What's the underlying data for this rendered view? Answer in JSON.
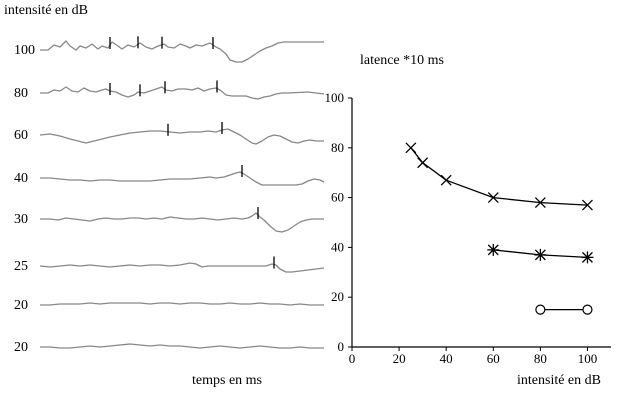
{
  "left_panel": {
    "ylabel": "intensité en dB",
    "xlabel": "temps en  ms",
    "traces": [
      {
        "label": "100",
        "wave": [
          [
            0,
            0
          ],
          [
            8,
            0
          ],
          [
            14,
            -5
          ],
          [
            20,
            -3
          ],
          [
            26,
            -9
          ],
          [
            30,
            -4
          ],
          [
            36,
            0
          ],
          [
            40,
            -4
          ],
          [
            46,
            -2
          ],
          [
            52,
            -6
          ],
          [
            58,
            -1
          ],
          [
            62,
            -4
          ],
          [
            68,
            -2
          ],
          [
            72,
            -8
          ],
          [
            78,
            -4
          ],
          [
            82,
            -1
          ],
          [
            88,
            -5
          ],
          [
            94,
            -3
          ],
          [
            100,
            -7
          ],
          [
            106,
            -3
          ],
          [
            112,
            -1
          ],
          [
            118,
            -4
          ],
          [
            124,
            -6
          ],
          [
            128,
            -3
          ],
          [
            134,
            -2
          ],
          [
            140,
            -6
          ],
          [
            146,
            -4
          ],
          [
            150,
            -2
          ],
          [
            156,
            -5
          ],
          [
            162,
            -4
          ],
          [
            170,
            -7
          ],
          [
            176,
            -3
          ],
          [
            180,
            -1
          ],
          [
            186,
            4
          ],
          [
            190,
            10
          ],
          [
            196,
            12
          ],
          [
            202,
            12
          ],
          [
            208,
            9
          ],
          [
            214,
            5
          ],
          [
            220,
            1
          ],
          [
            226,
            -2
          ],
          [
            232,
            -4
          ],
          [
            238,
            -7
          ],
          [
            244,
            -8
          ],
          [
            250,
            -8
          ],
          [
            284,
            -8
          ]
        ],
        "peaks": [
          70,
          98,
          122,
          173
        ]
      },
      {
        "label": "80",
        "wave": [
          [
            0,
            0
          ],
          [
            8,
            0
          ],
          [
            14,
            -3
          ],
          [
            20,
            -2
          ],
          [
            26,
            -6
          ],
          [
            32,
            -2
          ],
          [
            38,
            -1
          ],
          [
            44,
            -5
          ],
          [
            50,
            -2
          ],
          [
            56,
            -1
          ],
          [
            62,
            -3
          ],
          [
            66,
            -4
          ],
          [
            70,
            -2
          ],
          [
            76,
            -1
          ],
          [
            82,
            2
          ],
          [
            88,
            4
          ],
          [
            94,
            2
          ],
          [
            98,
            -1
          ],
          [
            104,
            0
          ],
          [
            110,
            -2
          ],
          [
            116,
            -4
          ],
          [
            122,
            -6
          ],
          [
            126,
            -3
          ],
          [
            132,
            -2
          ],
          [
            138,
            -4
          ],
          [
            146,
            -4
          ],
          [
            152,
            -3
          ],
          [
            158,
            -5
          ],
          [
            164,
            -2
          ],
          [
            170,
            -4
          ],
          [
            176,
            -5
          ],
          [
            180,
            -3
          ],
          [
            186,
            2
          ],
          [
            192,
            3
          ],
          [
            198,
            3
          ],
          [
            206,
            3
          ],
          [
            212,
            5
          ],
          [
            218,
            6
          ],
          [
            224,
            4
          ],
          [
            230,
            3
          ],
          [
            236,
            1
          ],
          [
            242,
            0
          ],
          [
            248,
            0
          ],
          [
            268,
            -1
          ],
          [
            276,
            0
          ],
          [
            284,
            1
          ]
        ],
        "peaks": [
          70,
          100,
          125,
          177
        ]
      },
      {
        "label": "60",
        "wave": [
          [
            0,
            0
          ],
          [
            10,
            -1
          ],
          [
            20,
            1
          ],
          [
            30,
            4
          ],
          [
            38,
            6
          ],
          [
            46,
            8
          ],
          [
            54,
            6
          ],
          [
            62,
            4
          ],
          [
            70,
            2
          ],
          [
            80,
            0
          ],
          [
            90,
            -2
          ],
          [
            100,
            -3
          ],
          [
            110,
            -4
          ],
          [
            120,
            -4
          ],
          [
            130,
            -3
          ],
          [
            140,
            -2
          ],
          [
            150,
            -3
          ],
          [
            160,
            -3
          ],
          [
            168,
            -4
          ],
          [
            176,
            -3
          ],
          [
            182,
            -5
          ],
          [
            188,
            -6
          ],
          [
            194,
            -3
          ],
          [
            200,
            0
          ],
          [
            206,
            4
          ],
          [
            212,
            8
          ],
          [
            216,
            9
          ],
          [
            222,
            6
          ],
          [
            228,
            2
          ],
          [
            234,
            0
          ],
          [
            240,
            1
          ],
          [
            246,
            4
          ],
          [
            252,
            7
          ],
          [
            258,
            8
          ],
          [
            264,
            6
          ],
          [
            270,
            5
          ],
          [
            276,
            6
          ],
          [
            284,
            6
          ]
        ],
        "peaks": [
          128,
          182
        ]
      },
      {
        "label": "40",
        "wave": [
          [
            0,
            0
          ],
          [
            10,
            0
          ],
          [
            20,
            1
          ],
          [
            30,
            2
          ],
          [
            40,
            2
          ],
          [
            50,
            3
          ],
          [
            60,
            2
          ],
          [
            70,
            2
          ],
          [
            80,
            3
          ],
          [
            90,
            3
          ],
          [
            100,
            3
          ],
          [
            110,
            3
          ],
          [
            120,
            2
          ],
          [
            130,
            1
          ],
          [
            140,
            1
          ],
          [
            150,
            1
          ],
          [
            160,
            0
          ],
          [
            170,
            -1
          ],
          [
            176,
            0
          ],
          [
            184,
            -1
          ],
          [
            190,
            -3
          ],
          [
            196,
            -5
          ],
          [
            200,
            -6
          ],
          [
            204,
            -4
          ],
          [
            210,
            0
          ],
          [
            216,
            4
          ],
          [
            222,
            7
          ],
          [
            228,
            7
          ],
          [
            240,
            7
          ],
          [
            256,
            7
          ],
          [
            262,
            6
          ],
          [
            268,
            3
          ],
          [
            274,
            1
          ],
          [
            280,
            2
          ],
          [
            284,
            4
          ]
        ],
        "peaks": [
          202
        ]
      },
      {
        "label": "30",
        "wave": [
          [
            0,
            0
          ],
          [
            10,
            0
          ],
          [
            18,
            1
          ],
          [
            26,
            -1
          ],
          [
            34,
            0
          ],
          [
            42,
            1
          ],
          [
            50,
            2
          ],
          [
            58,
            0
          ],
          [
            66,
            -1
          ],
          [
            74,
            0
          ],
          [
            82,
            0
          ],
          [
            90,
            -1
          ],
          [
            98,
            -1
          ],
          [
            106,
            0
          ],
          [
            114,
            -1
          ],
          [
            122,
            0
          ],
          [
            130,
            -2
          ],
          [
            138,
            -1
          ],
          [
            146,
            0
          ],
          [
            154,
            0
          ],
          [
            162,
            -1
          ],
          [
            170,
            0
          ],
          [
            178,
            1
          ],
          [
            186,
            0
          ],
          [
            194,
            -1
          ],
          [
            202,
            0
          ],
          [
            208,
            -1
          ],
          [
            212,
            -3
          ],
          [
            216,
            -6
          ],
          [
            220,
            -2
          ],
          [
            224,
            1
          ],
          [
            230,
            7
          ],
          [
            236,
            12
          ],
          [
            242,
            13
          ],
          [
            248,
            11
          ],
          [
            254,
            7
          ],
          [
            260,
            3
          ],
          [
            266,
            1
          ],
          [
            272,
            0
          ],
          [
            284,
            0
          ]
        ],
        "peaks": [
          218
        ]
      },
      {
        "label": "25",
        "wave": [
          [
            0,
            0
          ],
          [
            10,
            1
          ],
          [
            20,
            0
          ],
          [
            30,
            -1
          ],
          [
            40,
            0
          ],
          [
            50,
            -1
          ],
          [
            60,
            0
          ],
          [
            70,
            1
          ],
          [
            80,
            0
          ],
          [
            90,
            -1
          ],
          [
            100,
            0
          ],
          [
            110,
            -1
          ],
          [
            120,
            -1
          ],
          [
            130,
            0
          ],
          [
            140,
            -1
          ],
          [
            150,
            -3
          ],
          [
            156,
            -2
          ],
          [
            162,
            1
          ],
          [
            168,
            0
          ],
          [
            176,
            0
          ],
          [
            186,
            0
          ],
          [
            196,
            0
          ],
          [
            206,
            0
          ],
          [
            216,
            0
          ],
          [
            226,
            0
          ],
          [
            232,
            -2
          ],
          [
            236,
            -1
          ],
          [
            240,
            3
          ],
          [
            246,
            6
          ],
          [
            252,
            6
          ],
          [
            260,
            5
          ],
          [
            268,
            4
          ],
          [
            276,
            3
          ],
          [
            284,
            2
          ]
        ],
        "peaks": [
          234
        ]
      },
      {
        "label": "20",
        "wave": [
          [
            0,
            0
          ],
          [
            10,
            0
          ],
          [
            20,
            -1
          ],
          [
            30,
            -1
          ],
          [
            40,
            -1
          ],
          [
            50,
            -2
          ],
          [
            60,
            -1
          ],
          [
            70,
            -2
          ],
          [
            80,
            -2
          ],
          [
            90,
            -2
          ],
          [
            100,
            -2
          ],
          [
            110,
            -1
          ],
          [
            120,
            -2
          ],
          [
            130,
            -2
          ],
          [
            140,
            -1
          ],
          [
            150,
            -2
          ],
          [
            160,
            -2
          ],
          [
            170,
            -1
          ],
          [
            180,
            -1
          ],
          [
            190,
            -2
          ],
          [
            200,
            -1
          ],
          [
            210,
            -1
          ],
          [
            220,
            -2
          ],
          [
            230,
            -1
          ],
          [
            240,
            -1
          ],
          [
            250,
            0
          ],
          [
            260,
            -1
          ],
          [
            270,
            0
          ],
          [
            284,
            0
          ]
        ],
        "peaks": []
      },
      {
        "label": "20",
        "wave": [
          [
            0,
            0
          ],
          [
            10,
            0
          ],
          [
            20,
            1
          ],
          [
            30,
            1
          ],
          [
            40,
            0
          ],
          [
            50,
            -1
          ],
          [
            60,
            0
          ],
          [
            70,
            -1
          ],
          [
            80,
            -2
          ],
          [
            90,
            -3
          ],
          [
            100,
            -2
          ],
          [
            110,
            -1
          ],
          [
            120,
            -2
          ],
          [
            130,
            -1
          ],
          [
            140,
            -1
          ],
          [
            150,
            0
          ],
          [
            160,
            1
          ],
          [
            170,
            0
          ],
          [
            180,
            -1
          ],
          [
            190,
            0
          ],
          [
            200,
            1
          ],
          [
            210,
            0
          ],
          [
            220,
            -1
          ],
          [
            230,
            0
          ],
          [
            240,
            1
          ],
          [
            250,
            1
          ],
          [
            260,
            0
          ],
          [
            270,
            1
          ],
          [
            284,
            1
          ]
        ],
        "peaks": []
      }
    ]
  },
  "chart_data": {
    "type": "line",
    "title": "latence *10 ms",
    "xlabel": "intensité en dB",
    "ylabel": "",
    "xlim": [
      0,
      110
    ],
    "ylim": [
      0,
      100
    ],
    "x_ticks": [
      "0",
      "20",
      "40",
      "60",
      "80",
      "100"
    ],
    "y_ticks": [
      "0",
      "20",
      "40",
      "60",
      "80",
      "100"
    ],
    "grid": false,
    "series": [
      {
        "marker": "x",
        "x": [
          25,
          30,
          40,
          60,
          80,
          100
        ],
        "y": [
          80,
          74,
          67,
          60,
          58,
          57
        ]
      },
      {
        "marker": "asterisk",
        "x": [
          60,
          80,
          100
        ],
        "y": [
          39,
          37,
          36
        ]
      },
      {
        "marker": "circle",
        "x": [
          80,
          100
        ],
        "y": [
          15,
          15
        ]
      }
    ]
  }
}
